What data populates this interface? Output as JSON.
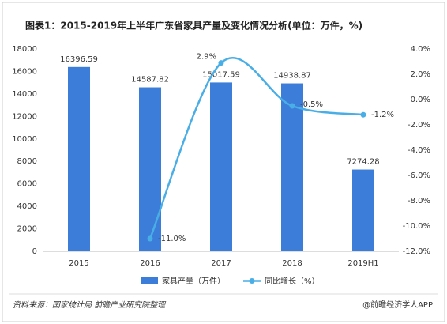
{
  "chart_data": {
    "type": "bar-line",
    "title": "图表1：2015-2019年上半年广东省家具产量及变化情况分析(单位：万件，%)",
    "categories": [
      "2015",
      "2016",
      "2017",
      "2018",
      "2019H1"
    ],
    "series": [
      {
        "name": "家具产量（万件）",
        "color": "#3b7dd8",
        "type": "bar",
        "values": [
          16396.59,
          14587.82,
          15017.59,
          14938.87,
          7274.28
        ]
      },
      {
        "name": "同比增长（%）",
        "color": "#4aaee6",
        "type": "line",
        "axis": "y2",
        "values": [
          null,
          -11.0,
          2.9,
          -0.5,
          -1.2
        ],
        "value_labels": [
          null,
          "-11.0%",
          "2.9%",
          "-0.5%",
          "-1.2%"
        ]
      }
    ],
    "ylim": [
      0,
      18000
    ],
    "yticks": [
      0,
      2000,
      4000,
      6000,
      8000,
      10000,
      12000,
      14000,
      16000,
      18000
    ],
    "y2lim": [
      -12,
      4
    ],
    "y2ticks": [
      {
        "value": -12,
        "label": "-12.0%"
      },
      {
        "value": -10,
        "label": "-10.0%"
      },
      {
        "value": -8,
        "label": "-8.0%"
      },
      {
        "value": -6,
        "label": "-6.0%"
      },
      {
        "value": -4,
        "label": "-4.0%"
      },
      {
        "value": -2,
        "label": "-2.0%"
      },
      {
        "value": 0,
        "label": "0.0%"
      },
      {
        "value": 2,
        "label": "2.0%"
      },
      {
        "value": 4,
        "label": "4.0%"
      }
    ],
    "grid": false,
    "legend": "bottom",
    "source": "资料来源：国家统计局 前瞻产业研究院整理",
    "credit": "@前瞻经济学人APP"
  }
}
